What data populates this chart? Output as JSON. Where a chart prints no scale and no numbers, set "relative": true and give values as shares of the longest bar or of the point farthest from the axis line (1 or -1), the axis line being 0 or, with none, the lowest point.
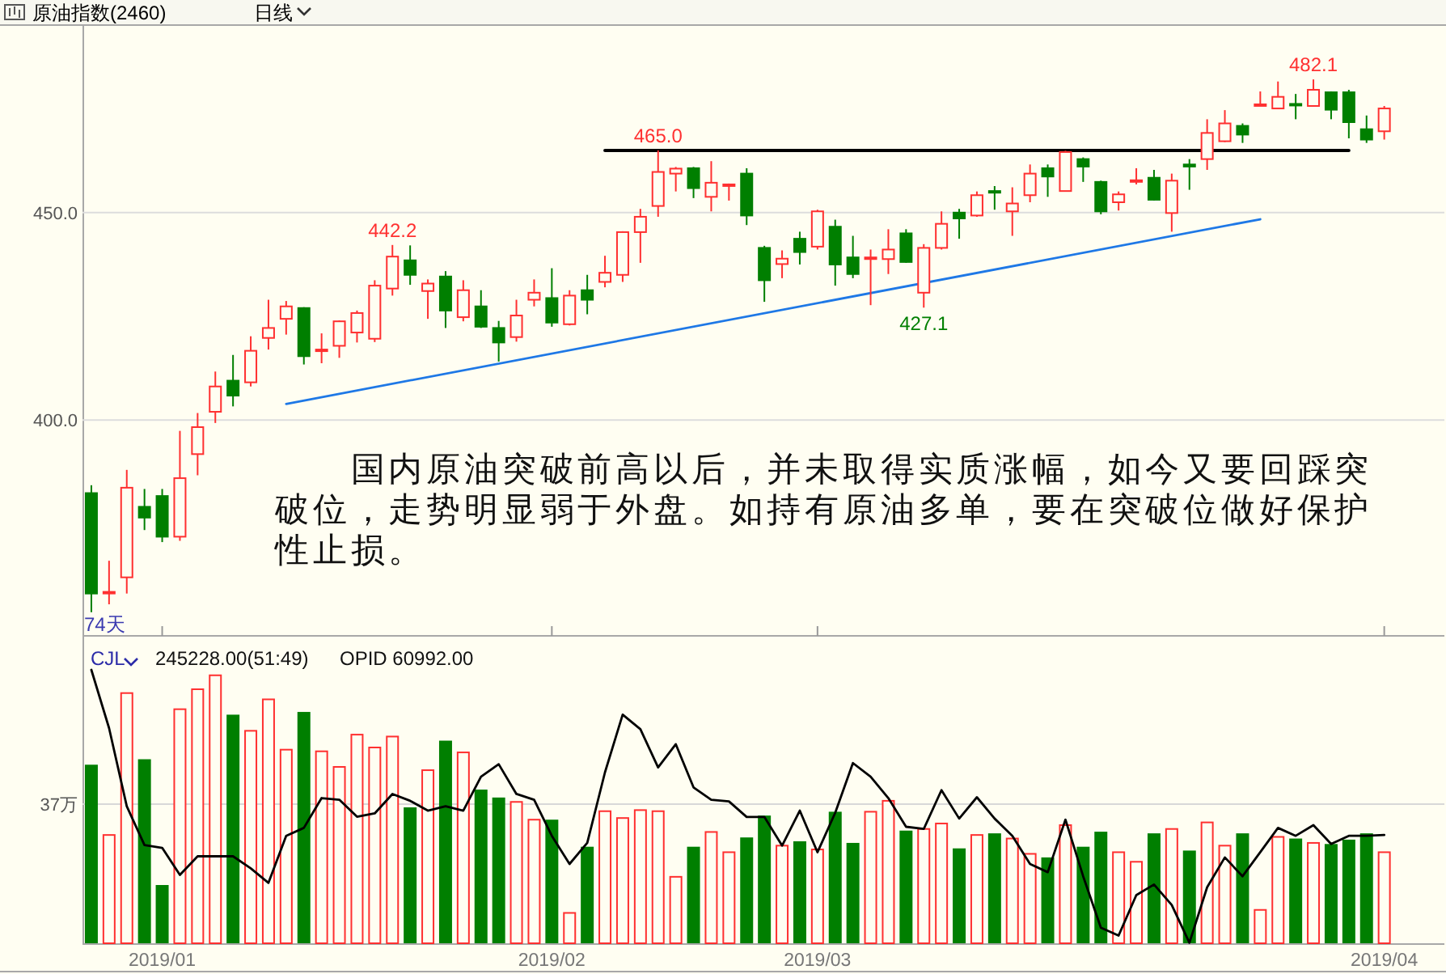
{
  "chart_data": [
    {
      "type": "candlestick",
      "title": "原油指数(2460)",
      "subtitle": "日线",
      "categories": [
        null,
        null,
        null,
        null,
        "2019/01",
        null,
        null,
        null,
        null,
        null,
        null,
        null,
        null,
        null,
        null,
        null,
        null,
        null,
        null,
        null,
        null,
        null,
        null,
        null,
        null,
        null,
        "2019/02",
        null,
        null,
        null,
        null,
        null,
        null,
        null,
        null,
        null,
        null,
        null,
        null,
        null,
        null,
        "2019/03",
        null,
        null,
        null,
        null,
        null,
        null,
        null,
        null,
        null,
        null,
        null,
        null,
        null,
        null,
        null,
        null,
        null,
        null,
        null,
        null,
        null,
        null,
        null,
        null,
        null,
        null,
        null,
        null,
        null,
        null,
        null,
        "2019/04"
      ],
      "ohlc": [
        [
          382.4,
          384.3,
          353.7,
          358.2
        ],
        [
          358.4,
          366.1,
          355.6,
          358.6
        ],
        [
          362.1,
          388.0,
          358.2,
          383.7
        ],
        [
          379.1,
          383.4,
          373.5,
          376.5
        ],
        [
          381.7,
          383.4,
          370.6,
          371.9
        ],
        [
          371.9,
          397.4,
          370.9,
          386.0
        ],
        [
          391.8,
          401.7,
          386.7,
          398.3
        ],
        [
          402.0,
          411.7,
          399.3,
          408.1
        ],
        [
          409.5,
          415.7,
          403.3,
          405.9
        ],
        [
          409.1,
          420.2,
          408.1,
          416.7
        ],
        [
          419.8,
          429.0,
          417.0,
          422.2
        ],
        [
          424.4,
          428.7,
          420.6,
          427.4
        ],
        [
          427.0,
          427.2,
          413.4,
          415.4
        ],
        [
          416.8,
          420.9,
          413.7,
          417.0
        ],
        [
          417.9,
          424.0,
          415.0,
          423.8
        ],
        [
          421.1,
          426.4,
          418.7,
          425.8
        ],
        [
          419.6,
          433.7,
          418.8,
          432.4
        ],
        [
          431.7,
          442.2,
          430.0,
          439.4
        ],
        [
          438.5,
          442.1,
          432.6,
          435.0
        ],
        [
          431.1,
          433.9,
          424.4,
          432.9
        ],
        [
          434.6,
          435.9,
          422.2,
          426.4
        ],
        [
          424.8,
          433.7,
          423.8,
          431.3
        ],
        [
          427.4,
          431.3,
          422.2,
          422.5
        ],
        [
          422.2,
          423.9,
          414.1,
          418.7
        ],
        [
          420.0,
          429.0,
          418.9,
          425.2
        ],
        [
          429.0,
          433.9,
          427.4,
          430.7
        ],
        [
          429.4,
          436.6,
          422.5,
          423.5
        ],
        [
          423.1,
          431.3,
          422.8,
          430.0
        ],
        [
          431.3,
          435.0,
          425.5,
          429.0
        ],
        [
          433.3,
          439.6,
          432.0,
          435.5
        ],
        [
          435.0,
          445.5,
          433.3,
          445.3
        ],
        [
          445.3,
          450.9,
          437.9,
          449.0
        ],
        [
          451.6,
          465.0,
          449.0,
          459.8
        ],
        [
          459.4,
          461.0,
          455.1,
          460.6
        ],
        [
          460.7,
          461.0,
          453.5,
          455.9
        ],
        [
          453.8,
          462.4,
          450.3,
          457.2
        ],
        [
          456.6,
          457.0,
          452.9,
          456.8
        ],
        [
          459.4,
          460.7,
          447.0,
          449.3
        ],
        [
          441.5,
          442.0,
          428.5,
          433.7
        ],
        [
          437.6,
          440.9,
          434.2,
          438.9
        ],
        [
          443.7,
          445.4,
          437.5,
          440.5
        ],
        [
          441.8,
          450.7,
          441.1,
          450.3
        ],
        [
          446.6,
          448.3,
          432.4,
          437.5
        ],
        [
          439.2,
          444.4,
          434.2,
          435.2
        ],
        [
          439.0,
          441.1,
          427.7,
          439.2
        ],
        [
          438.8,
          446.0,
          435.2,
          441.1
        ],
        [
          445.0,
          446.0,
          437.9,
          438.1
        ],
        [
          430.7,
          442.4,
          427.1,
          441.5
        ],
        [
          441.5,
          450.3,
          441.1,
          447.3
        ],
        [
          450.0,
          450.9,
          443.7,
          448.6
        ],
        [
          449.3,
          455.1,
          449.0,
          454.2
        ],
        [
          455.2,
          456.4,
          450.7,
          454.8
        ],
        [
          450.3,
          456.1,
          444.4,
          452.2
        ],
        [
          454.2,
          461.6,
          452.5,
          459.4
        ],
        [
          460.7,
          461.6,
          453.8,
          458.7
        ],
        [
          455.2,
          464.9,
          455.2,
          464.6
        ],
        [
          462.9,
          463.3,
          457.4,
          461.1
        ],
        [
          457.4,
          457.7,
          449.6,
          450.3
        ],
        [
          452.5,
          455.1,
          450.5,
          454.4
        ],
        [
          457.6,
          460.7,
          456.8,
          457.8
        ],
        [
          458.4,
          460.3,
          452.9,
          453.1
        ],
        [
          449.9,
          459.4,
          445.4,
          457.7
        ],
        [
          461.6,
          462.9,
          455.5,
          461.1
        ],
        [
          462.9,
          472.5,
          460.3,
          469.2
        ],
        [
          467.2,
          474.7,
          467.0,
          471.5
        ],
        [
          470.9,
          471.5,
          466.8,
          468.8
        ],
        [
          476.0,
          479.2,
          475.9,
          476.1
        ],
        [
          475.1,
          481.6,
          475.0,
          477.9
        ],
        [
          476.2,
          478.6,
          472.5,
          476.0
        ],
        [
          475.7,
          482.1,
          475.5,
          479.6
        ],
        [
          479.0,
          479.2,
          472.5,
          474.8
        ],
        [
          479.0,
          479.6,
          467.9,
          471.8
        ],
        [
          470.1,
          473.4,
          466.8,
          467.6
        ],
        [
          469.6,
          475.7,
          467.6,
          475.1
        ]
      ],
      "colors": [
        "#007f00",
        "#ff3030",
        "#ff3030",
        "#007f00",
        "#007f00",
        "#ff3030",
        "#ff3030",
        "#ff3030",
        "#007f00",
        "#ff3030",
        "#ff3030",
        "#ff3030",
        "#007f00",
        "#ff3030",
        "#ff3030",
        "#ff3030",
        "#ff3030",
        "#ff3030",
        "#007f00",
        "#ff3030",
        "#007f00",
        "#ff3030",
        "#007f00",
        "#007f00",
        "#ff3030",
        "#ff3030",
        "#007f00",
        "#ff3030",
        "#007f00",
        "#ff3030",
        "#ff3030",
        "#ff3030",
        "#ff3030",
        "#ff3030",
        "#007f00",
        "#ff3030",
        "#ff3030",
        "#007f00",
        "#007f00",
        "#ff3030",
        "#007f00",
        "#ff3030",
        "#007f00",
        "#007f00",
        "#ff3030",
        "#ff3030",
        "#007f00",
        "#ff3030",
        "#ff3030",
        "#007f00",
        "#ff3030",
        "#007f00",
        "#ff3030",
        "#ff3030",
        "#007f00",
        "#ff3030",
        "#007f00",
        "#007f00",
        "#ff3030",
        "#ff3030",
        "#007f00",
        "#ff3030",
        "#007f00",
        "#ff3030",
        "#ff3030",
        "#007f00",
        "#ff3030",
        "#ff3030",
        "#007f00",
        "#ff3030",
        "#007f00",
        "#007f00",
        "#007f00",
        "#ff3030"
      ],
      "series": [
        {
          "type": "line",
          "color": "#1e78e6",
          "values": [
            null,
            null,
            null,
            null,
            null,
            null,
            null,
            null,
            null,
            null,
            null,
            403.9,
            null,
            null,
            null,
            null,
            null,
            null,
            null,
            null,
            null,
            null,
            null,
            null,
            null,
            null,
            null,
            null,
            null,
            null,
            null,
            null,
            null,
            null,
            null,
            null,
            null,
            null,
            null,
            null,
            null,
            null,
            null,
            null,
            null,
            null,
            null,
            null,
            null,
            null,
            null,
            null,
            null,
            null,
            null,
            null,
            null,
            null,
            null,
            null,
            null,
            null,
            null,
            null,
            null,
            null,
            448.4,
            null,
            null,
            null,
            null,
            null,
            null,
            null
          ]
        },
        {
          "type": "line",
          "color": "#000000",
          "values": [
            null,
            null,
            null,
            null,
            null,
            null,
            null,
            null,
            null,
            null,
            null,
            null,
            null,
            null,
            null,
            null,
            null,
            null,
            null,
            null,
            null,
            null,
            null,
            null,
            null,
            null,
            null,
            null,
            null,
            465.0,
            null,
            null,
            null,
            null,
            null,
            null,
            null,
            null,
            null,
            null,
            null,
            null,
            null,
            null,
            null,
            null,
            null,
            null,
            null,
            null,
            null,
            null,
            null,
            null,
            null,
            null,
            null,
            null,
            null,
            null,
            null,
            null,
            null,
            null,
            null,
            null,
            null,
            null,
            null,
            null,
            null,
            465.0,
            null,
            null
          ]
        }
      ],
      "ylim": [
        348,
        495
      ],
      "yticks": [
        {
          "value": 400,
          "label": "400.0"
        },
        {
          "value": 450,
          "label": "450.0"
        }
      ],
      "grid": "y",
      "tick_labels": "y",
      "annotations": [
        "国内原油突破前高以后，并未取得实质涨幅，如今又要回踩突破位，走势明显弱于外盘。如持有原油多单，要在突破位做好保护性止损。",
        "74天",
        {
          "text": "442.2",
          "y": 442.2
        },
        {
          "text": "465.0",
          "y": 465.0
        },
        {
          "text": "482.1",
          "y": 482.1
        },
        {
          "text": "427.1",
          "y": 427.1
        }
      ]
    },
    {
      "type": "bar",
      "relative": true,
      "categories": [
        null,
        null,
        null,
        null,
        "2019/01",
        null,
        null,
        null,
        null,
        null,
        null,
        null,
        null,
        null,
        null,
        null,
        null,
        null,
        null,
        null,
        null,
        null,
        null,
        null,
        null,
        null,
        "2019/02",
        null,
        null,
        null,
        null,
        null,
        null,
        null,
        null,
        null,
        null,
        null,
        null,
        null,
        null,
        "2019/03",
        null,
        null,
        null,
        null,
        null,
        null,
        null,
        null,
        null,
        null,
        null,
        null,
        null,
        null,
        null,
        null,
        null,
        null,
        null,
        null,
        null,
        null,
        null,
        null,
        null,
        null,
        null,
        null,
        null,
        null,
        null,
        "2019/04"
      ],
      "series": [
        {
          "type": "bar",
          "colors": [
            "#007f00",
            "#ff3030",
            "#ff3030",
            "#007f00",
            "#007f00",
            "#ff3030",
            "#ff3030",
            "#ff3030",
            "#007f00",
            "#ff3030",
            "#ff3030",
            "#ff3030",
            "#007f00",
            "#ff3030",
            "#ff3030",
            "#ff3030",
            "#ff3030",
            "#ff3030",
            "#007f00",
            "#ff3030",
            "#007f00",
            "#ff3030",
            "#007f00",
            "#007f00",
            "#ff3030",
            "#ff3030",
            "#007f00",
            "#ff3030",
            "#007f00",
            "#ff3030",
            "#ff3030",
            "#ff3030",
            "#ff3030",
            "#ff3030",
            "#007f00",
            "#ff3030",
            "#ff3030",
            "#007f00",
            "#007f00",
            "#ff3030",
            "#007f00",
            "#ff3030",
            "#007f00",
            "#007f00",
            "#ff3030",
            "#ff3030",
            "#007f00",
            "#ff3030",
            "#ff3030",
            "#007f00",
            "#ff3030",
            "#007f00",
            "#ff3030",
            "#ff3030",
            "#007f00",
            "#ff3030",
            "#007f00",
            "#007f00",
            "#ff3030",
            "#ff3030",
            "#007f00",
            "#ff3030",
            "#007f00",
            "#ff3030",
            "#ff3030",
            "#007f00",
            "#ff3030",
            "#ff3030",
            "#007f00",
            "#ff3030",
            "#007f00",
            "#007f00",
            "#007f00",
            "#ff3030"
          ],
          "values": [
            0.653,
            0.396,
            0.915,
            0.673,
            0.213,
            0.856,
            0.929,
            0.98,
            0.836,
            0.777,
            0.892,
            0.708,
            0.846,
            0.702,
            0.645,
            0.763,
            0.716,
            0.756,
            0.497,
            0.633,
            0.741,
            0.698,
            0.562,
            0.533,
            0.517,
            0.452,
            0.452,
            0.111,
            0.353,
            0.483,
            0.458,
            0.487,
            0.483,
            0.243,
            0.353,
            0.407,
            0.333,
            0.387,
            0.467,
            0.357,
            0.373,
            0.343,
            0.481,
            0.367,
            0.481,
            0.521,
            0.412,
            0.418,
            0.438,
            0.347,
            0.396,
            0.402,
            0.383,
            0.327,
            0.314,
            0.432,
            0.353,
            0.408,
            0.333,
            0.298,
            0.402,
            0.418,
            0.339,
            0.442,
            0.357,
            0.402,
            0.122,
            0.389,
            0.383,
            0.367,
            0.363,
            0.379,
            0.402,
            0.333
          ]
        },
        {
          "type": "line",
          "color": "#000000",
          "values": [
            1.0,
            0.787,
            0.501,
            0.359,
            0.349,
            0.25,
            0.318,
            0.318,
            0.318,
            0.274,
            0.221,
            0.393,
            0.422,
            0.531,
            0.525,
            0.463,
            0.475,
            0.546,
            0.521,
            0.485,
            0.501,
            0.485,
            0.609,
            0.655,
            0.546,
            0.525,
            0.393,
            0.29,
            0.367,
            0.625,
            0.836,
            0.783,
            0.643,
            0.728,
            0.57,
            0.525,
            0.519,
            0.462,
            0.462,
            0.357,
            0.485,
            0.333,
            0.477,
            0.659,
            0.609,
            0.531,
            0.426,
            0.418,
            0.56,
            0.456,
            0.534,
            0.456,
            0.393,
            0.29,
            0.26,
            0.452,
            0.245,
            0.057,
            0.028,
            0.176,
            0.215,
            0.14,
            0.002,
            0.205,
            0.314,
            0.245,
            0.333,
            0.422,
            0.393,
            0.432,
            0.363,
            0.393,
            0.393,
            0.396
          ]
        }
      ],
      "ref_lines": [
        {
          "axis": "y",
          "value": 0.509,
          "label": "37万"
        }
      ],
      "tick_labels": "x",
      "annotations": [
        "CJL",
        "245228.00(51:49)",
        "OPID 60992.00"
      ]
    }
  ]
}
